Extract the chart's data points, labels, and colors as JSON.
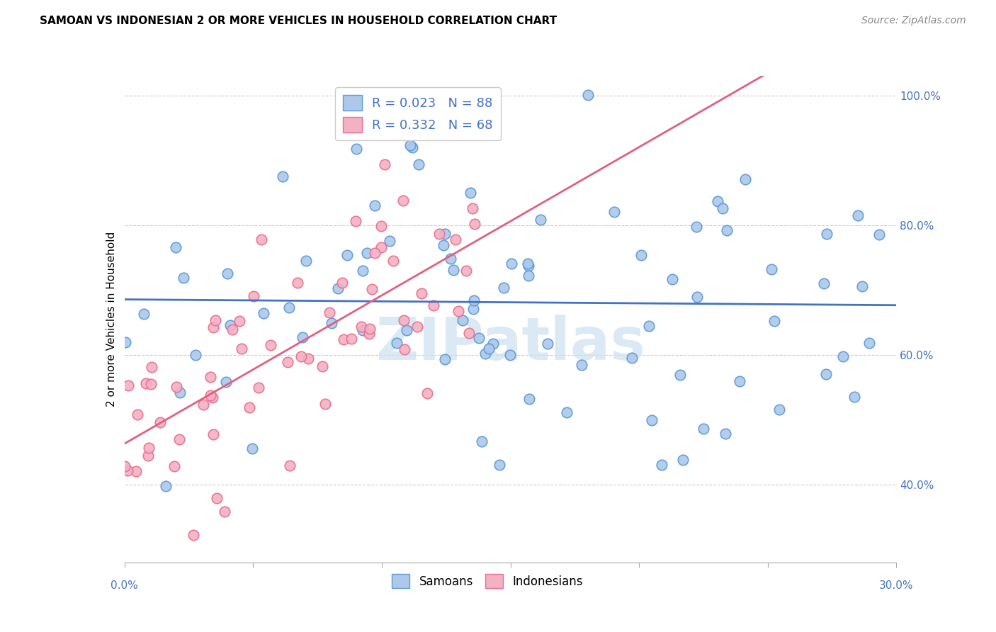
{
  "title": "SAMOAN VS INDONESIAN 2 OR MORE VEHICLES IN HOUSEHOLD CORRELATION CHART",
  "source": "Source: ZipAtlas.com",
  "ylabel": "2 or more Vehicles in Household",
  "xmin": 0.0,
  "xmax": 30.0,
  "ymin": 28.0,
  "ymax": 103.0,
  "samoan_fill_color": "#adc8eb",
  "indonesian_fill_color": "#f4b0c5",
  "samoan_edge_color": "#5b9bd5",
  "indonesian_edge_color": "#e8708a",
  "samoan_line_color": "#4472c4",
  "indonesian_line_color": "#e06080",
  "label_color": "#4472c4",
  "R_samoan": 0.023,
  "N_samoan": 88,
  "R_indonesian": 0.332,
  "N_indonesian": 68,
  "watermark": "ZIPatlas",
  "watermark_color": "#cce0f0",
  "grid_color": "#cccccc",
  "title_fontsize": 11,
  "source_fontsize": 10,
  "legend_fontsize": 13,
  "tick_fontsize": 11,
  "ylabel_fontsize": 11,
  "marker_size": 110,
  "line_width": 2.0,
  "y_intercept_samoan": 67.0,
  "slope_samoan": 0.08,
  "y_intercept_indonesian": 50.5,
  "slope_indonesian": 1.85
}
